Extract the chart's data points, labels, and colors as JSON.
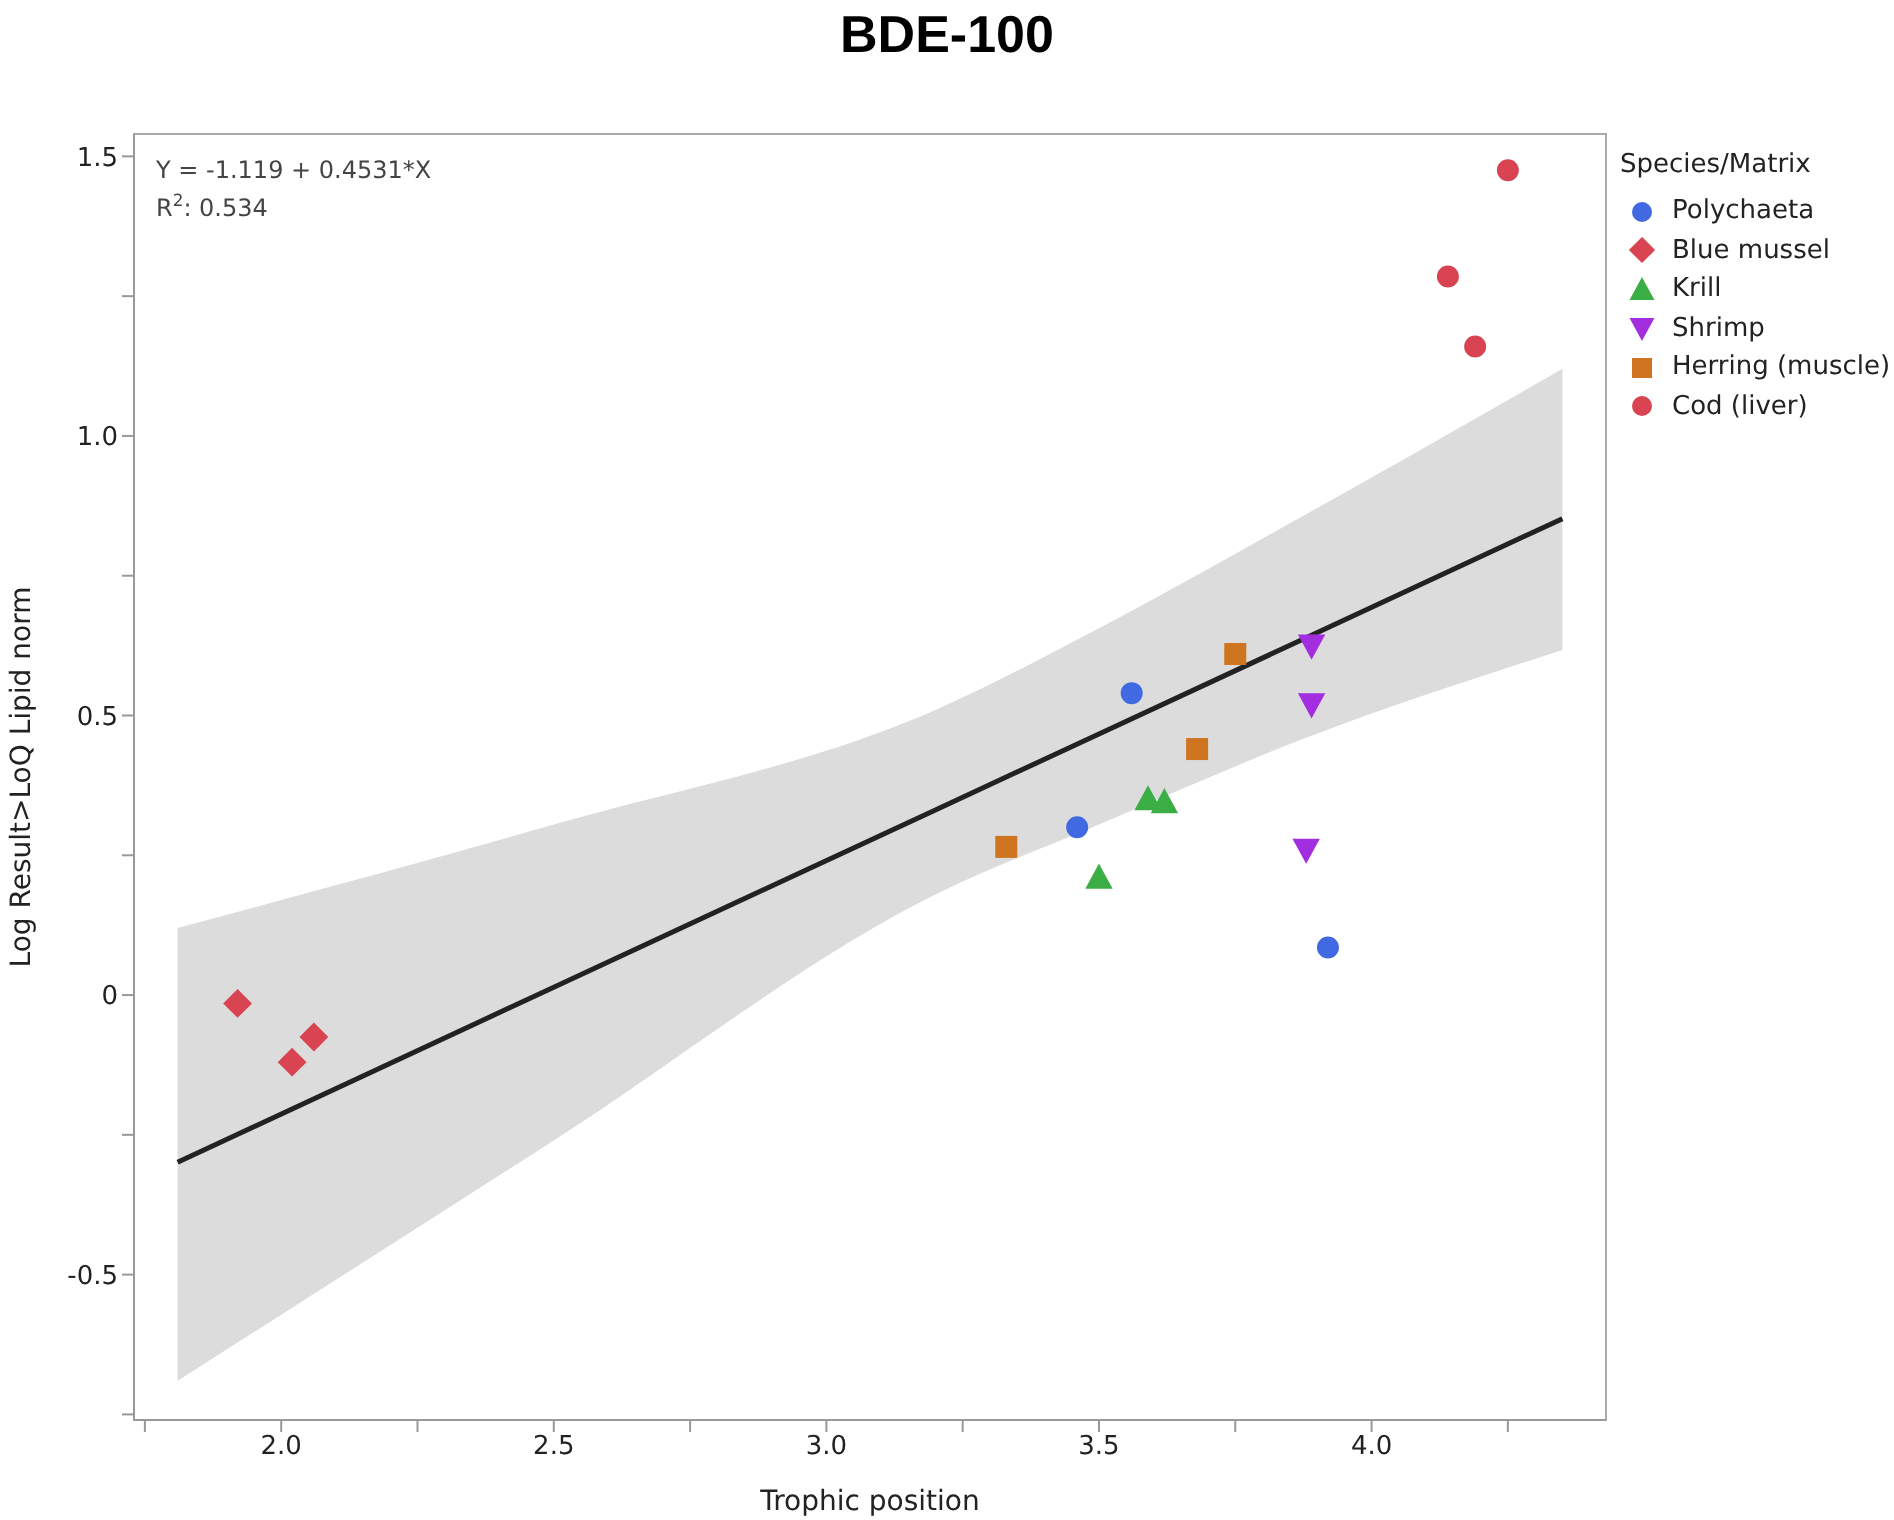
{
  "chart_data": {
    "type": "scatter",
    "title": "BDE-100",
    "xlabel": "Trophic position",
    "ylabel": "Log Result>LoQ Lipid norm",
    "legend_title": "Species/Matrix",
    "legend": "right",
    "grid": false,
    "annotations": [
      "Y = -1.119 + 0.4531*X",
      "R$^{2}$: 0.534"
    ],
    "xlim": [
      1.73,
      4.43
    ],
    "xticks": [
      {
        "value": 1.75,
        "label": null
      },
      {
        "value": 2,
        "label": "2.0"
      },
      {
        "value": 2.25,
        "label": null
      },
      2.5,
      {
        "value": 2.75,
        "label": null
      },
      {
        "value": 3,
        "label": "3.0"
      },
      {
        "value": 3.25,
        "label": null
      },
      3.5,
      {
        "value": 3.75,
        "label": null
      },
      {
        "value": 4,
        "label": "4.0"
      },
      {
        "value": 4.25,
        "label": null
      }
    ],
    "ylim": [
      -0.76,
      1.54
    ],
    "yticks": [
      {
        "value": -0.75,
        "label": null
      },
      -0.5,
      {
        "value": -0.25,
        "label": null
      },
      0,
      {
        "value": 0.25,
        "label": null
      },
      0.5,
      {
        "value": 0.75,
        "label": null
      },
      {
        "value": 1,
        "label": "1.0"
      },
      {
        "value": 1.25,
        "label": null
      },
      1.5
    ],
    "series": [
      {
        "type": "line",
        "color": "#222222",
        "x": [
          1.81,
          2.5,
          3.2,
          3.5,
          3.88,
          4.35
        ],
        "values": [
          -0.299,
          0.014,
          0.331,
          0.467,
          0.639,
          0.852
        ],
        "lower": [
          -0.69,
          -0.26,
          0.18,
          0.305,
          0.46,
          0.617
        ],
        "upper": [
          0.12,
          0.305,
          0.51,
          0.656,
          0.86,
          1.12
        ]
      },
      {
        "name": "Polychaeta",
        "color": "#4169e1",
        "marker": "circle",
        "x": [
          3.56,
          3.46,
          3.92
        ],
        "values": [
          0.54,
          0.3,
          0.085
        ]
      },
      {
        "name": "Blue mussel",
        "color": "#d94452",
        "marker": "diamond",
        "x": [
          1.92,
          2.02,
          2.06
        ],
        "values": [
          -0.015,
          -0.12,
          -0.075
        ]
      },
      {
        "name": "Krill",
        "color": "#3cae46",
        "marker": "triangle",
        "x": [
          3.5,
          3.59,
          3.62
        ],
        "values": [
          0.21,
          0.35,
          0.345
        ]
      },
      {
        "name": "Shrimp",
        "color": "#a32ee0",
        "marker": "triangle-down",
        "x": [
          3.89,
          3.89,
          3.88
        ],
        "values": [
          0.625,
          0.52,
          0.26
        ]
      },
      {
        "name": "Herring (muscle)",
        "color": "#cf7420",
        "marker": "square",
        "x": [
          3.33,
          3.68,
          3.75
        ],
        "values": [
          0.265,
          0.44,
          0.61
        ]
      },
      {
        "name": "Cod (liver)",
        "color": "#d94452",
        "marker": "circle",
        "x": [
          4.14,
          4.19,
          4.25
        ],
        "values": [
          1.285,
          1.16,
          1.475
        ]
      }
    ]
  }
}
